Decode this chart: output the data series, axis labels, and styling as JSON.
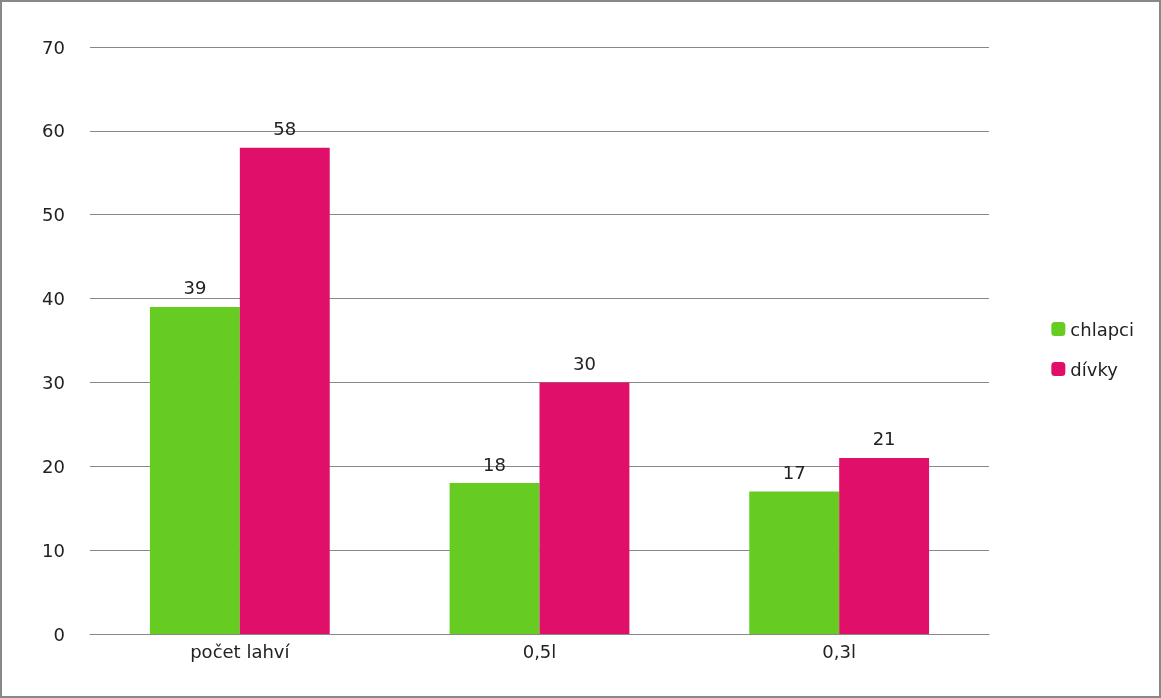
{
  "chart_data": {
    "type": "bar",
    "categories": [
      "počet lahví",
      "0,5l",
      "0,3l"
    ],
    "series": [
      {
        "name": "chlapci",
        "color": "#66cc22",
        "values": [
          39,
          18,
          17
        ]
      },
      {
        "name": "dívky",
        "color": "#e0106a",
        "values": [
          58,
          30,
          21
        ]
      }
    ],
    "ylim": [
      0,
      70
    ],
    "yticks": [
      0,
      10,
      20,
      30,
      40,
      50,
      60,
      70
    ],
    "grid": "y",
    "legend": "right",
    "data_labels": true
  }
}
